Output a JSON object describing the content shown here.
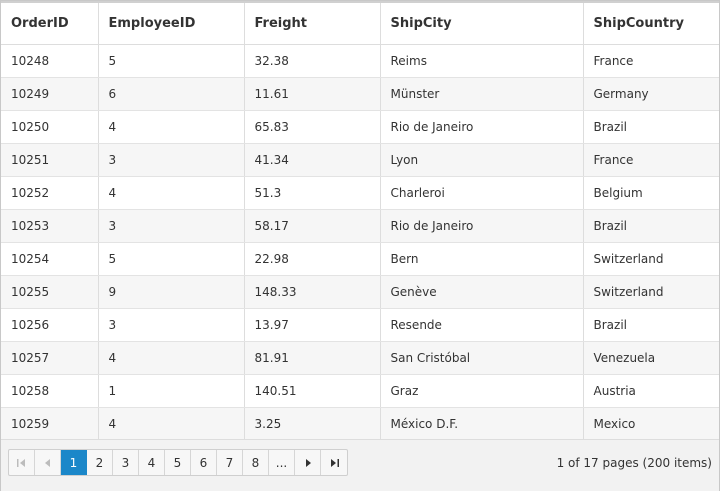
{
  "grid": {
    "columns": [
      "OrderID",
      "EmployeeID",
      "Freight",
      "ShipCity",
      "ShipCountry"
    ],
    "rows": [
      [
        "10248",
        "5",
        "32.38",
        "Reims",
        "France"
      ],
      [
        "10249",
        "6",
        "11.61",
        "Münster",
        "Germany"
      ],
      [
        "10250",
        "4",
        "65.83",
        "Rio de Janeiro",
        "Brazil"
      ],
      [
        "10251",
        "3",
        "41.34",
        "Lyon",
        "France"
      ],
      [
        "10252",
        "4",
        "51.3",
        "Charleroi",
        "Belgium"
      ],
      [
        "10253",
        "3",
        "58.17",
        "Rio de Janeiro",
        "Brazil"
      ],
      [
        "10254",
        "5",
        "22.98",
        "Bern",
        "Switzerland"
      ],
      [
        "10255",
        "9",
        "148.33",
        "Genève",
        "Switzerland"
      ],
      [
        "10256",
        "3",
        "13.97",
        "Resende",
        "Brazil"
      ],
      [
        "10257",
        "4",
        "81.91",
        "San Cristóbal",
        "Venezuela"
      ],
      [
        "10258",
        "1",
        "140.51",
        "Graz",
        "Austria"
      ],
      [
        "10259",
        "4",
        "3.25",
        "México D.F.",
        "Mexico"
      ]
    ]
  },
  "pager": {
    "pages": [
      "1",
      "2",
      "3",
      "4",
      "5",
      "6",
      "7",
      "8"
    ],
    "current_page": "1",
    "ellipsis": "...",
    "info": "1 of 17 pages (200 items)",
    "icons": {
      "first": "first-page-icon",
      "prev": "previous-page-icon",
      "next": "next-page-icon",
      "last": "last-page-icon"
    },
    "accent_color": "#1b87c9"
  }
}
